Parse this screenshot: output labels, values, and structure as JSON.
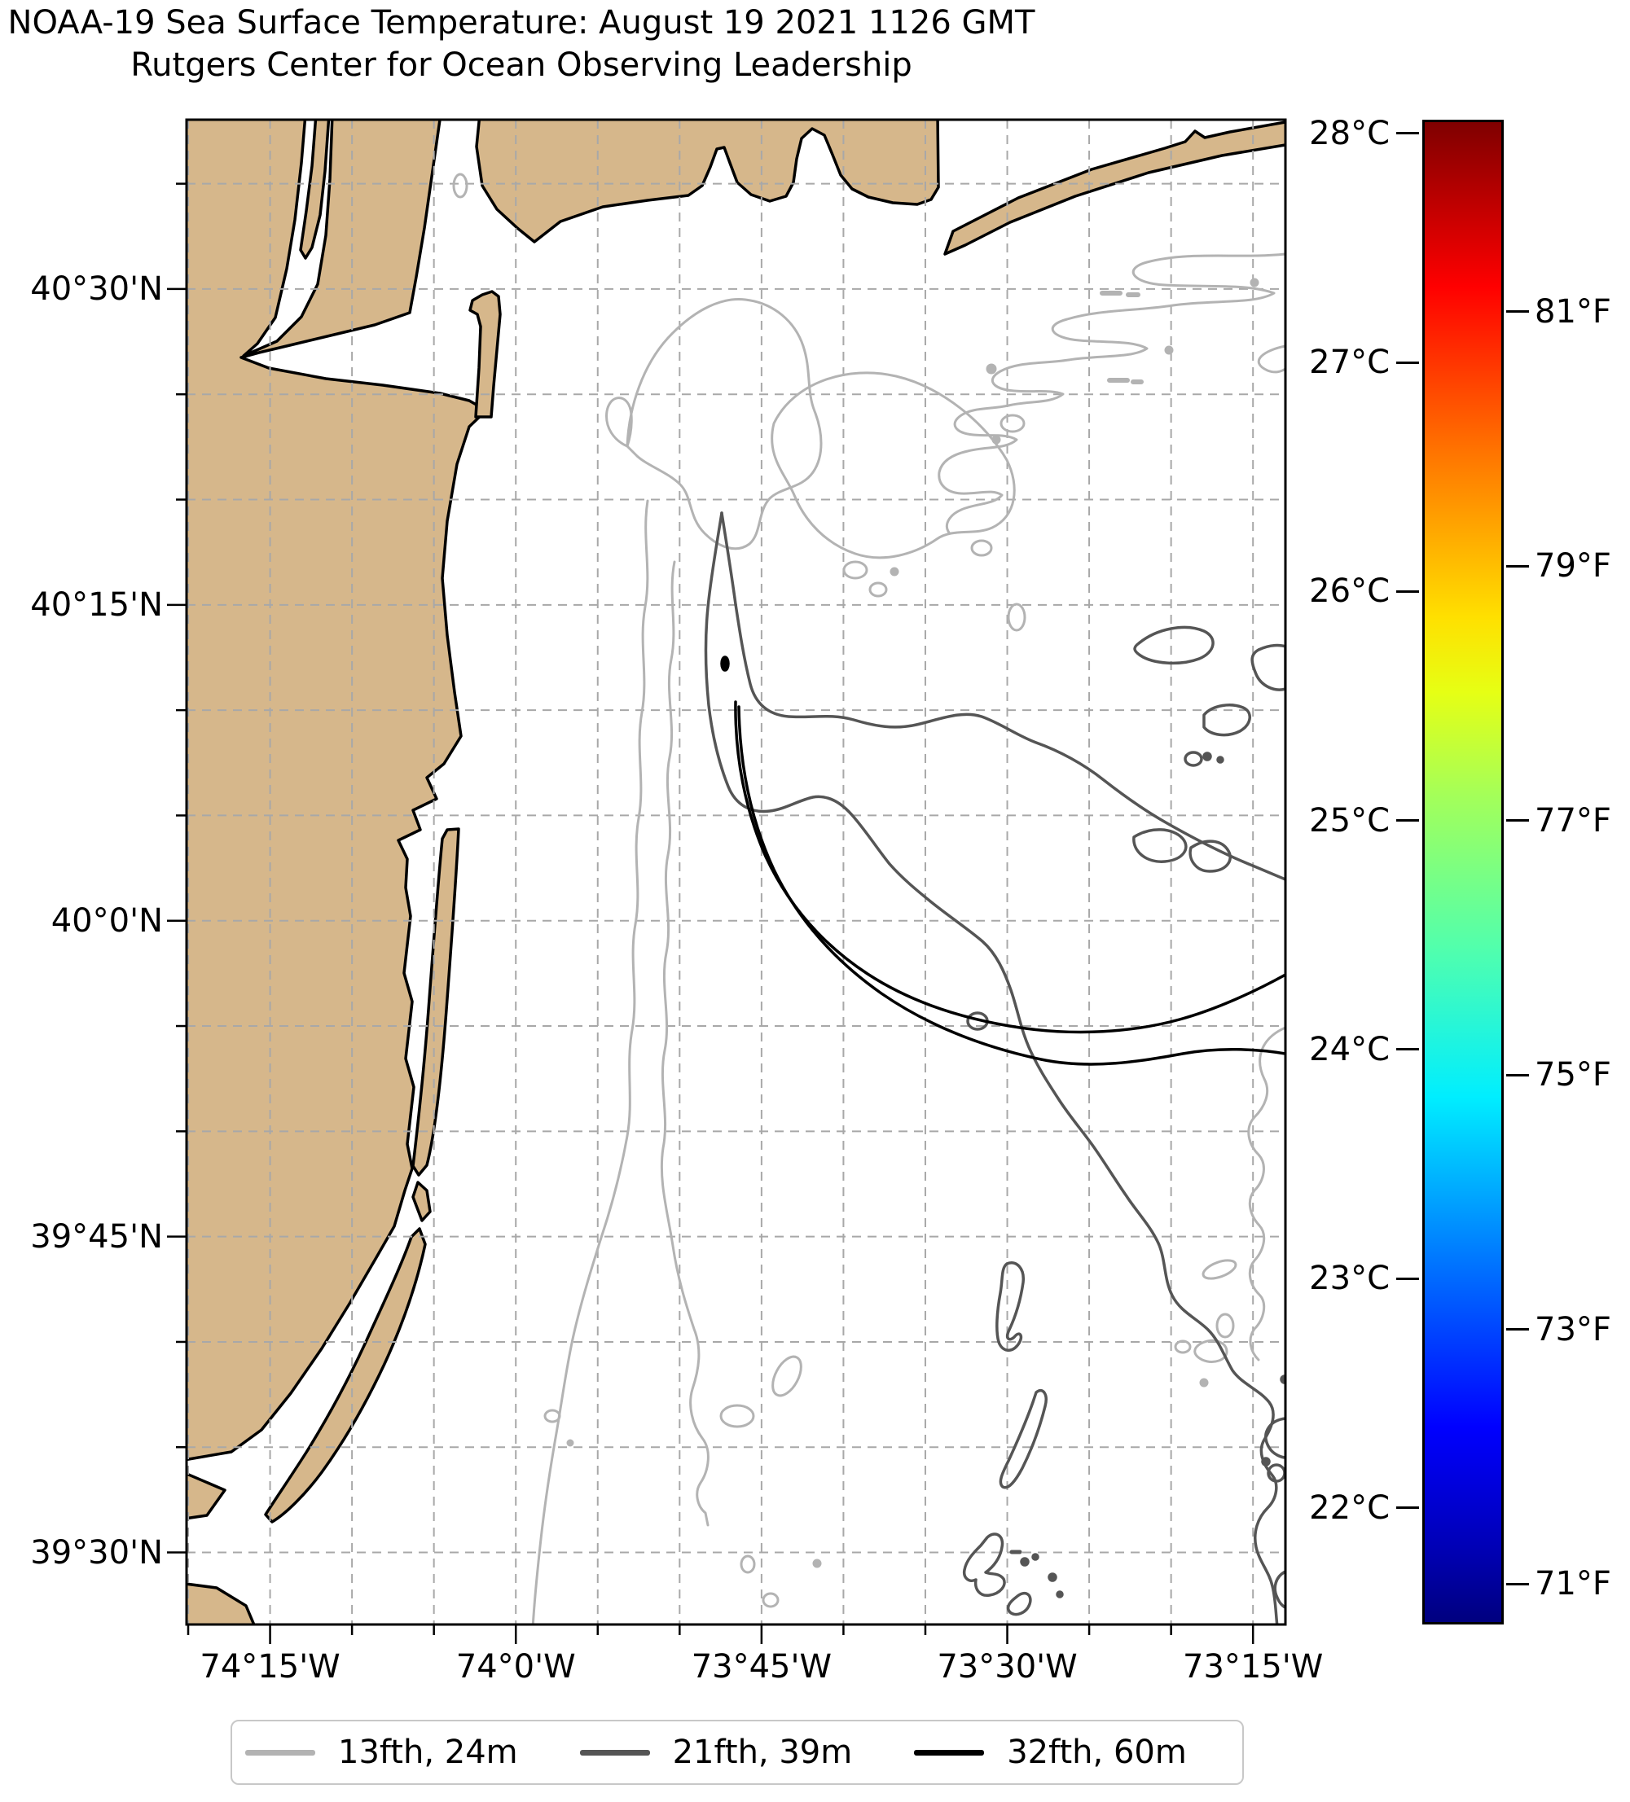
{
  "title": {
    "line1": "NOAA-19 Sea Surface Temperature: August 19 2021 1126 GMT",
    "line2": "Rutgers Center for Ocean Observing Leadership"
  },
  "chart_data": {
    "type": "map",
    "subtype": "sea-surface-temperature satellite map with bathymetry contours",
    "region": "New York Bight / New Jersey and Long Island coast",
    "extent": {
      "lon_min": -74.335,
      "lon_max": -73.217,
      "lat_min": 39.443,
      "lat_max": 40.634
    },
    "grid": {
      "visible": true,
      "style": "dashed",
      "step_deg": 0.083333
    },
    "x_axis": {
      "ticks": [
        {
          "label": "74°15'W",
          "lon": -74.25
        },
        {
          "label": "74°0'W",
          "lon": -74.0
        },
        {
          "label": "73°45'W",
          "lon": -73.75
        },
        {
          "label": "73°30'W",
          "lon": -73.5
        },
        {
          "label": "73°15'W",
          "lon": -73.25
        }
      ]
    },
    "y_axis": {
      "ticks": [
        {
          "label": "40°30'N",
          "lat": 40.5
        },
        {
          "label": "40°15'N",
          "lat": 40.25
        },
        {
          "label": "40°0'N",
          "lat": 40.0
        },
        {
          "label": "39°45'N",
          "lat": 39.75
        },
        {
          "label": "39°30'N",
          "lat": 39.5
        }
      ]
    },
    "colorbar": {
      "colormap": "jet",
      "vmin_c": 21.49,
      "vmax_c": 28.06,
      "ticks_c": [
        {
          "label": "28°C",
          "value": 28
        },
        {
          "label": "27°C",
          "value": 27
        },
        {
          "label": "26°C",
          "value": 26
        },
        {
          "label": "25°C",
          "value": 25
        },
        {
          "label": "24°C",
          "value": 24
        },
        {
          "label": "23°C",
          "value": 23
        },
        {
          "label": "22°C",
          "value": 22
        }
      ],
      "ticks_f": [
        {
          "label": "81°F",
          "value": 81
        },
        {
          "label": "79°F",
          "value": 79
        },
        {
          "label": "77°F",
          "value": 77
        },
        {
          "label": "75°F",
          "value": 75
        },
        {
          "label": "73°F",
          "value": 73
        },
        {
          "label": "71°F",
          "value": 71
        }
      ],
      "gradient": [
        [
          "0%",
          "rgb(127,0,0)"
        ],
        [
          "11%",
          "rgb(255,0,0)"
        ],
        [
          "22%",
          "rgb(255,116,0)"
        ],
        [
          "33%",
          "rgb(255,224,0)"
        ],
        [
          "38%",
          "rgb(230,255,20)"
        ],
        [
          "45%",
          "rgb(163,255,90)"
        ],
        [
          "55%",
          "rgb(82,255,172)"
        ],
        [
          "65%",
          "rgb(0,238,255)"
        ],
        [
          "75%",
          "rgb(0,128,255)"
        ],
        [
          "87%",
          "rgb(0,0,255)"
        ],
        [
          "95%",
          "rgb(0,0,182)"
        ],
        [
          "100%",
          "rgb(0,0,127)"
        ]
      ]
    },
    "legend": {
      "entries": [
        {
          "label": "13fth, 24m",
          "depth_m": 24,
          "color": "#b3b3b3"
        },
        {
          "label": "21fth, 39m",
          "depth_m": 39,
          "color": "#555555"
        },
        {
          "label": "32fth, 60m",
          "depth_m": 60,
          "color": "#000000"
        }
      ]
    },
    "land_color": "#d6b78b",
    "sea_color": "#ffffff",
    "features": [
      "New Jersey coastline",
      "Hudson River",
      "Raritan Bay",
      "Sandy Hook",
      "Long Island / Rockaway barrier",
      "Island Beach",
      "Long Beach Island",
      "Hudson Shelf Valley depth contours"
    ]
  }
}
